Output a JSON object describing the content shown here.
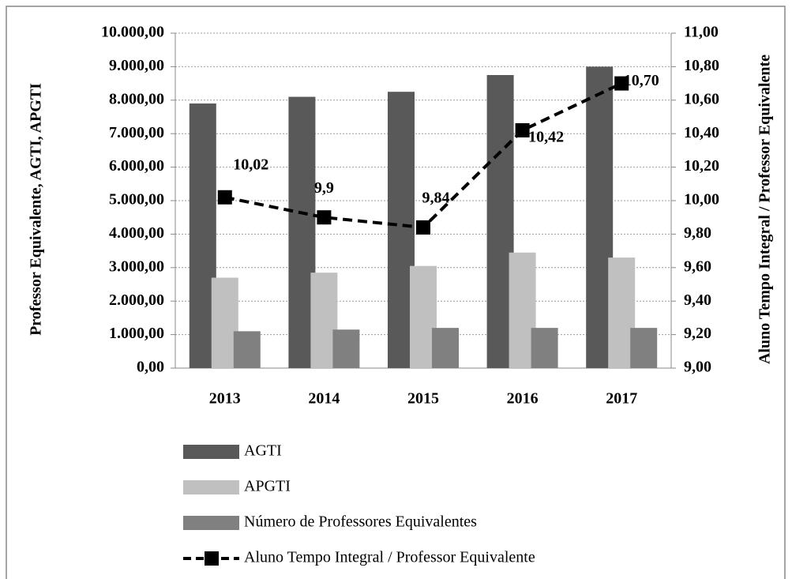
{
  "chart_data": {
    "type": "bar",
    "y_label": "Professor Equivalente, AGTI, APGTI",
    "y2_label": "Aluno Tempo Integral / Professor Equivalente",
    "categories": [
      "2013",
      "2014",
      "2015",
      "2016",
      "2017"
    ],
    "series": [
      {
        "name": "AGTI",
        "color": "#595959",
        "values": [
          7900,
          8100,
          8250,
          8750,
          9000
        ]
      },
      {
        "name": "APGTI",
        "color": "#c0c0c0",
        "values": [
          2700,
          2850,
          3050,
          3450,
          3300
        ]
      },
      {
        "name": "Número de Professores Equivalentes",
        "color": "#808080",
        "values": [
          1100,
          1150,
          1200,
          1200,
          1200
        ]
      },
      {
        "name": "Aluno Tempo Integral / Professor Equivalente",
        "color": "#000000",
        "type": "line",
        "axis": "y2",
        "values": [
          10.02,
          9.9,
          9.84,
          10.42,
          10.7
        ],
        "value_labels": [
          "10,02",
          "9,9",
          "9,84",
          "10,42",
          "10,70"
        ]
      }
    ],
    "ylim": [
      0,
      10000
    ],
    "yticks": [
      {
        "value": 0,
        "label": "0,00"
      },
      {
        "value": 1000,
        "label": "1.000,00"
      },
      {
        "value": 2000,
        "label": "2.000,00"
      },
      {
        "value": 3000,
        "label": "3.000,00"
      },
      {
        "value": 4000,
        "label": "4.000,00"
      },
      {
        "value": 5000,
        "label": "5.000,00"
      },
      {
        "value": 6000,
        "label": "6.000,00"
      },
      {
        "value": 7000,
        "label": "7.000,00"
      },
      {
        "value": 8000,
        "label": "8.000,00"
      },
      {
        "value": 9000,
        "label": "9.000,00"
      },
      {
        "value": 10000,
        "label": "10.000,00"
      }
    ],
    "y2lim": [
      9,
      11
    ],
    "y2ticks": [
      {
        "value": 9,
        "label": "9,00"
      },
      {
        "value": 9.2,
        "label": "9,20"
      },
      {
        "value": 9.4,
        "label": "9,40"
      },
      {
        "value": 9.6,
        "label": "9,60"
      },
      {
        "value": 9.8,
        "label": "9,80"
      },
      {
        "value": 10,
        "label": "10,00"
      },
      {
        "value": 10.2,
        "label": "10,20"
      },
      {
        "value": 10.4,
        "label": "10,40"
      },
      {
        "value": 10.6,
        "label": "10,60"
      },
      {
        "value": 10.8,
        "label": "10,80"
      },
      {
        "value": 11,
        "label": "11,00"
      }
    ],
    "grid": true
  }
}
